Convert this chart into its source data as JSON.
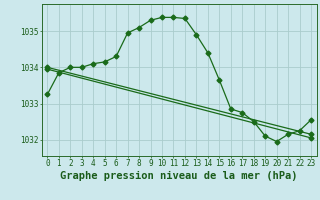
{
  "title": "Graphe pression niveau de la mer (hPa)",
  "background_color": "#cce8ec",
  "grid_color": "#aacccc",
  "line_color": "#1a6b1a",
  "text_color": "#1a5c1a",
  "spine_color": "#2a6b2a",
  "xlim": [
    -0.5,
    23.5
  ],
  "ylim": [
    1031.55,
    1035.75
  ],
  "yticks": [
    1032,
    1033,
    1034,
    1035
  ],
  "xticks": [
    0,
    1,
    2,
    3,
    4,
    5,
    6,
    7,
    8,
    9,
    10,
    11,
    12,
    13,
    14,
    15,
    16,
    17,
    18,
    19,
    20,
    21,
    22,
    23
  ],
  "line1_x": [
    0,
    1,
    2,
    3,
    4,
    5,
    6,
    7,
    8,
    9,
    10,
    11,
    12,
    13,
    14,
    15,
    16,
    17,
    18,
    19,
    20,
    21,
    22,
    23
  ],
  "line1_y": [
    1033.25,
    1033.85,
    1034.0,
    1034.0,
    1034.1,
    1034.15,
    1034.3,
    1034.95,
    1035.1,
    1035.3,
    1035.38,
    1035.38,
    1035.35,
    1034.9,
    1034.4,
    1033.65,
    1032.85,
    1032.75,
    1032.5,
    1032.1,
    1031.95,
    1032.15,
    1032.25,
    1032.55
  ],
  "line2_x": [
    0,
    23
  ],
  "line2_y": [
    1033.95,
    1032.05
  ],
  "line3_x": [
    0,
    23
  ],
  "line3_y": [
    1034.0,
    1032.15
  ],
  "markersize": 2.5,
  "linewidth": 0.9,
  "tick_fontsize": 5.5,
  "xlabel_fontsize": 7.5
}
